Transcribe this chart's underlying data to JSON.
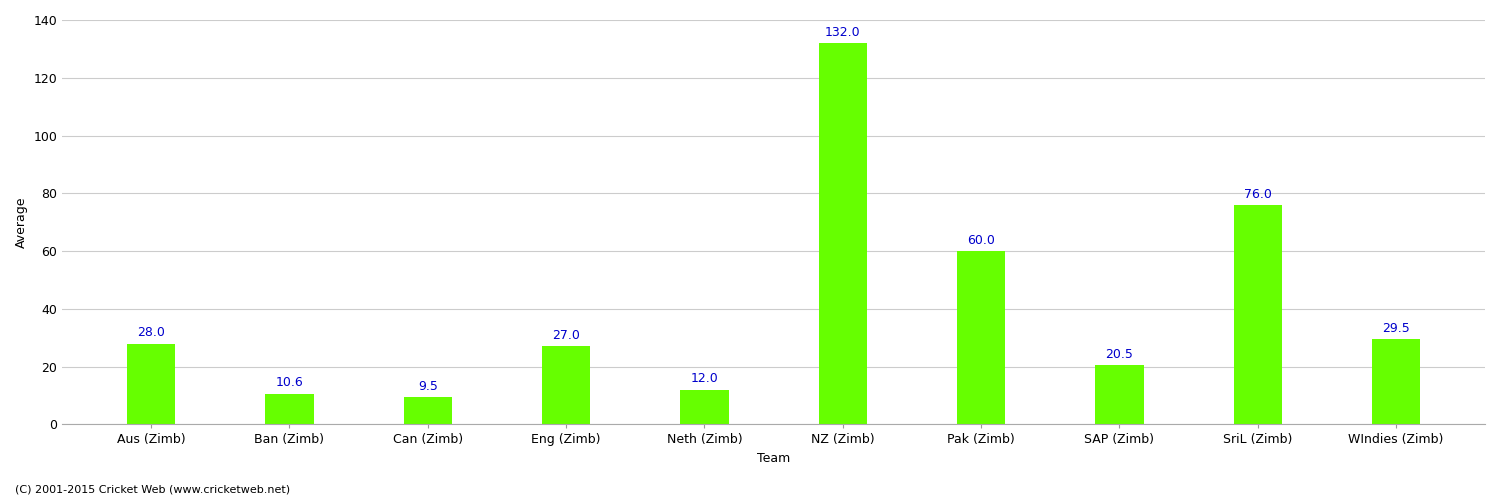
{
  "categories": [
    "Aus (Zimb)",
    "Ban (Zimb)",
    "Can (Zimb)",
    "Eng (Zimb)",
    "Neth (Zimb)",
    "NZ (Zimb)",
    "Pak (Zimb)",
    "SAP (Zimb)",
    "SriL (Zimb)",
    "WIndies (Zimb)"
  ],
  "values": [
    28.0,
    10.6,
    9.5,
    27.0,
    12.0,
    132.0,
    60.0,
    20.5,
    76.0,
    29.5
  ],
  "bar_color": "#66ff00",
  "value_color": "#0000cc",
  "xlabel": "Team",
  "ylabel": "Average",
  "ylim": [
    0,
    140
  ],
  "yticks": [
    0,
    20,
    40,
    60,
    80,
    100,
    120,
    140
  ],
  "grid_color": "#cccccc",
  "background_color": "#ffffff",
  "footer": "(C) 2001-2015 Cricket Web (www.cricketweb.net)",
  "value_fontsize": 9,
  "label_fontsize": 9,
  "axis_fontsize": 9,
  "bar_width": 0.35
}
